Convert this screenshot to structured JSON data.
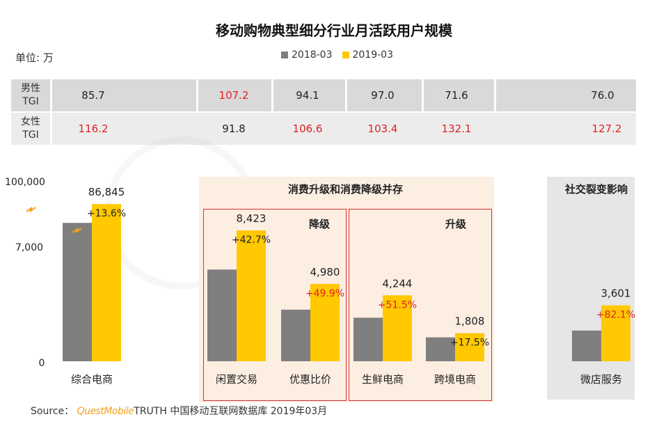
{
  "title": "移动购物典型细分行业月活跃用户规模",
  "unit_label": "单位: 万",
  "legend": [
    {
      "name": "2018-03",
      "color": "#7f7f7f"
    },
    {
      "name": "2019-03",
      "color": "#ffc800"
    }
  ],
  "tgi": {
    "male_label_1": "男性",
    "male_label_2": "TGI",
    "female_label_1": "女性",
    "female_label_2": "TGI",
    "male_values": [
      {
        "text": "85.7",
        "color": "black"
      },
      {
        "text": "107.2",
        "color": "red"
      },
      {
        "text": "94.1",
        "color": "black"
      },
      {
        "text": "97.0",
        "color": "black"
      },
      {
        "text": "71.6",
        "color": "black"
      },
      {
        "text": "76.0",
        "color": "black"
      }
    ],
    "female_values": [
      {
        "text": "116.2",
        "color": "red"
      },
      {
        "text": "91.8",
        "color": "black"
      },
      {
        "text": "106.6",
        "color": "red"
      },
      {
        "text": "103.4",
        "color": "red"
      },
      {
        "text": "132.1",
        "color": "red"
      },
      {
        "text": "127.2",
        "color": "red"
      }
    ]
  },
  "panels": {
    "mid_title": "消费升级和消费降级并存",
    "downgrade": "降级",
    "upgrade": "升级",
    "social": "社交裂变影响"
  },
  "chart_data": {
    "type": "bar",
    "yaxis_ticks": [
      "100,000",
      "7,000",
      "0"
    ],
    "axis_note": "broken y-axis",
    "categories": [
      "综合电商",
      "闲置交易",
      "优惠比价",
      "生鲜电商",
      "跨境电商",
      "微店服务"
    ],
    "series": [
      {
        "name": "2018-03",
        "values": [
          76459,
          5902,
          3322,
          2803,
          1539,
          1978
        ]
      },
      {
        "name": "2019-03",
        "values": [
          86845,
          8423,
          4980,
          4244,
          1808,
          3601
        ]
      }
    ],
    "value_labels": [
      "86,845",
      "8,423",
      "4,980",
      "4,244",
      "1,808",
      "3,601"
    ],
    "growth_labels": [
      "+13.6%",
      "+42.7%",
      "+49.9%",
      "+51.5%",
      "+17.5%",
      "+82.1%"
    ],
    "growth_colors": [
      "#222222",
      "#222222",
      "#e02020",
      "#e02020",
      "#222222",
      "#e02020"
    ]
  },
  "source": {
    "prefix": "Source：",
    "brand": "QuestMobile",
    "suffix": "TRUTH 中国移动互联网数据库 2019年03月"
  }
}
